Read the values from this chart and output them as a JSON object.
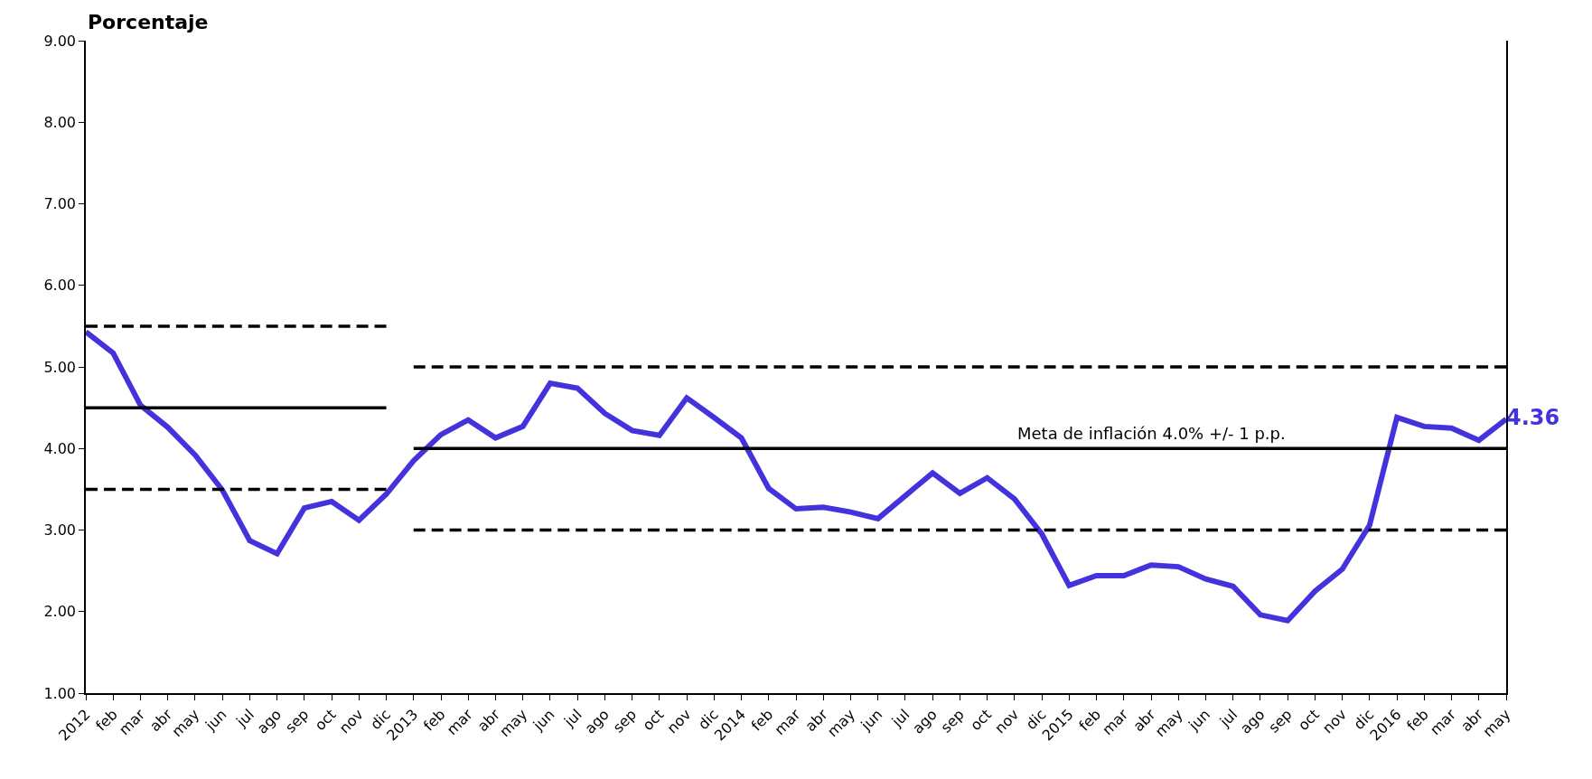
{
  "chart_data": {
    "type": "line",
    "ylabel": "Porcentaje",
    "categories": [
      "2012",
      "feb",
      "mar",
      "abr",
      "may",
      "jun",
      "jul",
      "ago",
      "sep",
      "oct",
      "nov",
      "dic",
      "2013",
      "feb",
      "mar",
      "abr",
      "may",
      "jun",
      "jul",
      "ago",
      "sep",
      "oct",
      "nov",
      "dic",
      "2014",
      "feb",
      "mar",
      "abr",
      "may",
      "jun",
      "jul",
      "ago",
      "sep",
      "oct",
      "nov",
      "dic",
      "2015",
      "feb",
      "mar",
      "abr",
      "may",
      "jun",
      "jul",
      "ago",
      "sep",
      "oct",
      "nov",
      "dic",
      "2016",
      "feb",
      "mar",
      "abr",
      "may"
    ],
    "series": [
      {
        "color": "#4433dd",
        "line_style": "solid",
        "values": [
          5.43,
          5.17,
          4.53,
          4.26,
          3.92,
          3.49,
          2.87,
          2.71,
          3.27,
          3.35,
          3.12,
          3.44,
          3.85,
          4.17,
          4.35,
          4.13,
          4.27,
          4.8,
          4.74,
          4.43,
          4.22,
          4.16,
          4.62,
          4.38,
          4.13,
          3.51,
          3.26,
          3.28,
          3.22,
          3.14,
          3.42,
          3.7,
          3.45,
          3.64,
          3.38,
          2.95,
          2.32,
          2.44,
          2.44,
          2.57,
          2.55,
          2.4,
          2.31,
          1.96,
          1.89,
          2.25,
          2.52,
          3.06,
          4.38,
          4.27,
          4.25,
          4.1,
          4.36
        ],
        "value_labels": [
          null,
          null,
          null,
          null,
          null,
          null,
          null,
          null,
          null,
          null,
          null,
          null,
          null,
          null,
          null,
          null,
          null,
          null,
          null,
          null,
          null,
          null,
          null,
          null,
          null,
          null,
          null,
          null,
          null,
          null,
          null,
          null,
          null,
          null,
          null,
          null,
          null,
          null,
          null,
          null,
          null,
          null,
          null,
          null,
          null,
          null,
          null,
          null,
          null,
          null,
          null,
          null,
          "4.36"
        ]
      },
      {
        "color": "#000000",
        "line_style": "solid",
        "values": [
          4.5,
          4.5,
          4.5,
          4.5,
          4.5,
          4.5,
          4.5,
          4.5,
          4.5,
          4.5,
          4.5,
          4.5,
          null,
          null,
          null,
          null,
          null,
          null,
          null,
          null,
          null,
          null,
          null,
          null,
          null,
          null,
          null,
          null,
          null,
          null,
          null,
          null,
          null,
          null,
          null,
          null,
          null,
          null,
          null,
          null,
          null,
          null,
          null,
          null,
          null,
          null,
          null,
          null,
          null,
          null,
          null,
          null,
          null
        ]
      },
      {
        "color": "#000000",
        "line_style": "dashed",
        "values": [
          5.5,
          5.5,
          5.5,
          5.5,
          5.5,
          5.5,
          5.5,
          5.5,
          5.5,
          5.5,
          5.5,
          5.5,
          null,
          null,
          null,
          null,
          null,
          null,
          null,
          null,
          null,
          null,
          null,
          null,
          null,
          null,
          null,
          null,
          null,
          null,
          null,
          null,
          null,
          null,
          null,
          null,
          null,
          null,
          null,
          null,
          null,
          null,
          null,
          null,
          null,
          null,
          null,
          null,
          null,
          null,
          null,
          null,
          null
        ]
      },
      {
        "color": "#000000",
        "line_style": "dashed",
        "values": [
          3.5,
          3.5,
          3.5,
          3.5,
          3.5,
          3.5,
          3.5,
          3.5,
          3.5,
          3.5,
          3.5,
          3.5,
          null,
          null,
          null,
          null,
          null,
          null,
          null,
          null,
          null,
          null,
          null,
          null,
          null,
          null,
          null,
          null,
          null,
          null,
          null,
          null,
          null,
          null,
          null,
          null,
          null,
          null,
          null,
          null,
          null,
          null,
          null,
          null,
          null,
          null,
          null,
          null,
          null,
          null,
          null,
          null,
          null
        ]
      },
      {
        "color": "#000000",
        "line_style": "solid",
        "values": [
          null,
          null,
          null,
          null,
          null,
          null,
          null,
          null,
          null,
          null,
          null,
          null,
          4.0,
          4.0,
          4.0,
          4.0,
          4.0,
          4.0,
          4.0,
          4.0,
          4.0,
          4.0,
          4.0,
          4.0,
          4.0,
          4.0,
          4.0,
          4.0,
          4.0,
          4.0,
          4.0,
          4.0,
          4.0,
          4.0,
          4.0,
          4.0,
          4.0,
          4.0,
          4.0,
          4.0,
          4.0,
          4.0,
          4.0,
          4.0,
          4.0,
          4.0,
          4.0,
          4.0,
          4.0,
          4.0,
          4.0,
          4.0,
          4.0
        ]
      },
      {
        "color": "#000000",
        "line_style": "dashed",
        "values": [
          null,
          null,
          null,
          null,
          null,
          null,
          null,
          null,
          null,
          null,
          null,
          null,
          5.0,
          5.0,
          5.0,
          5.0,
          5.0,
          5.0,
          5.0,
          5.0,
          5.0,
          5.0,
          5.0,
          5.0,
          5.0,
          5.0,
          5.0,
          5.0,
          5.0,
          5.0,
          5.0,
          5.0,
          5.0,
          5.0,
          5.0,
          5.0,
          5.0,
          5.0,
          5.0,
          5.0,
          5.0,
          5.0,
          5.0,
          5.0,
          5.0,
          5.0,
          5.0,
          5.0,
          5.0,
          5.0,
          5.0,
          5.0,
          5.0
        ]
      },
      {
        "color": "#000000",
        "line_style": "dashed",
        "values": [
          null,
          null,
          null,
          null,
          null,
          null,
          null,
          null,
          null,
          null,
          null,
          null,
          3.0,
          3.0,
          3.0,
          3.0,
          3.0,
          3.0,
          3.0,
          3.0,
          3.0,
          3.0,
          3.0,
          3.0,
          3.0,
          3.0,
          3.0,
          3.0,
          3.0,
          3.0,
          3.0,
          3.0,
          3.0,
          3.0,
          3.0,
          3.0,
          3.0,
          3.0,
          3.0,
          3.0,
          3.0,
          3.0,
          3.0,
          3.0,
          3.0,
          3.0,
          3.0,
          3.0,
          3.0,
          3.0,
          3.0,
          3.0,
          3.0
        ]
      }
    ],
    "annotations": [
      {
        "text": "Meta de inflación 4.0% +/- 1 p.p.",
        "y": 4.0
      }
    ],
    "ylim": [
      1.0,
      9.0
    ],
    "yticks": [
      {
        "value": 1,
        "label": "1.00"
      },
      {
        "value": 2,
        "label": "2.00"
      },
      {
        "value": 3,
        "label": "3.00"
      },
      {
        "value": 4,
        "label": "4.00"
      },
      {
        "value": 5,
        "label": "5.00"
      },
      {
        "value": 6,
        "label": "6.00"
      },
      {
        "value": 7,
        "label": "7.00"
      },
      {
        "value": 8,
        "label": "8.00"
      },
      {
        "value": 9,
        "label": "9.00"
      }
    ],
    "marker": "none"
  }
}
